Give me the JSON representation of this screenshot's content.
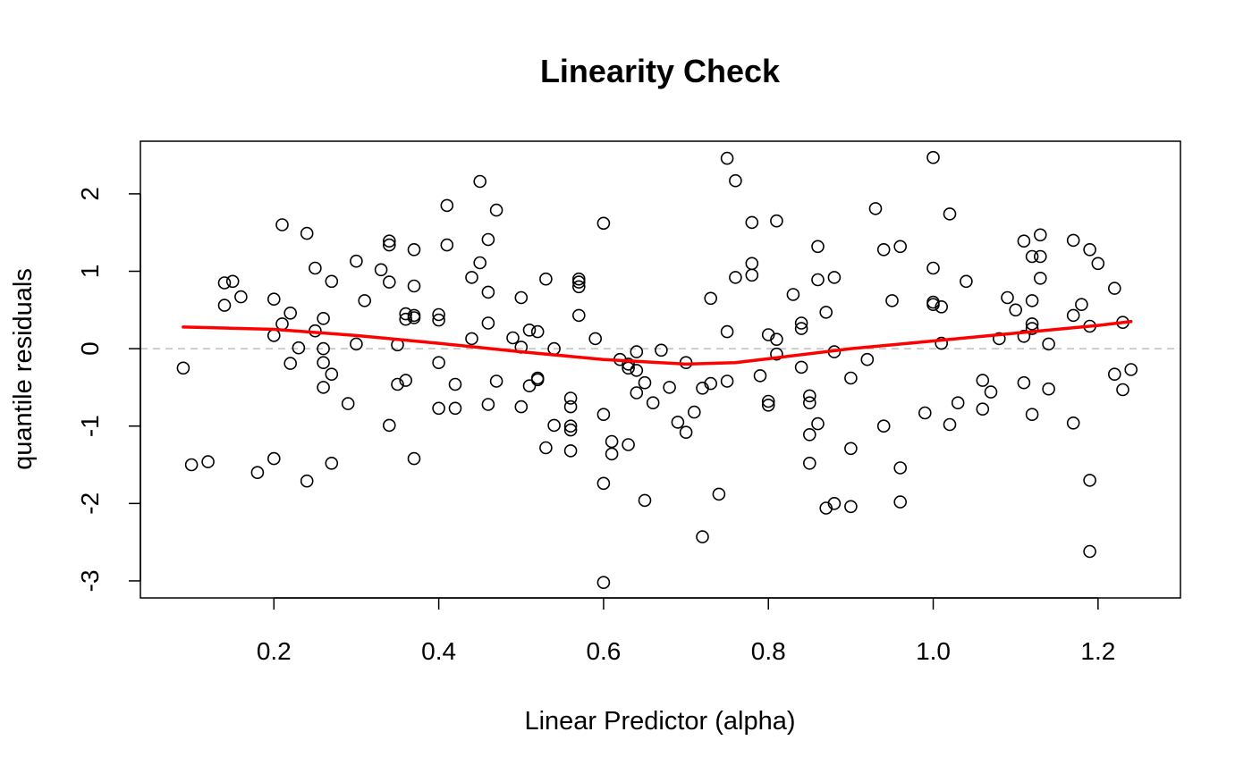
{
  "chart_data": {
    "type": "scatter",
    "title": "Linearity Check",
    "xlabel": "Linear Predictor (alpha)",
    "ylabel": "quantile residuals",
    "xlim": [
      0.04,
      1.3
    ],
    "ylim": [
      -3.2,
      2.7
    ],
    "x_ticks": [
      0.2,
      0.4,
      0.6,
      0.8,
      1.0,
      1.2
    ],
    "x_tick_labels": [
      "0.2",
      "0.4",
      "0.6",
      "0.8",
      "1.0",
      "1.2"
    ],
    "y_ticks": [
      -3,
      -2,
      -1,
      0,
      1,
      2
    ],
    "y_tick_labels": [
      "-3",
      "-2",
      "-1",
      "0",
      "1",
      "2"
    ],
    "grid": false,
    "reference_line": {
      "y": 0,
      "style": "dashed",
      "color": "#bebebe"
    },
    "point_color": "#000000",
    "smooth_color": "#ff0000",
    "points": [
      [
        0.09,
        -0.25
      ],
      [
        0.1,
        -1.5
      ],
      [
        0.12,
        -1.46
      ],
      [
        0.14,
        0.56
      ],
      [
        0.14,
        0.85
      ],
      [
        0.15,
        0.87
      ],
      [
        0.16,
        0.67
      ],
      [
        0.18,
        -1.6
      ],
      [
        0.2,
        0.17
      ],
      [
        0.2,
        0.64
      ],
      [
        0.2,
        -1.42
      ],
      [
        0.21,
        1.6
      ],
      [
        0.21,
        0.32
      ],
      [
        0.22,
        0.46
      ],
      [
        0.22,
        -0.19
      ],
      [
        0.23,
        0.01
      ],
      [
        0.24,
        1.49
      ],
      [
        0.24,
        -1.71
      ],
      [
        0.25,
        0.23
      ],
      [
        0.25,
        1.04
      ],
      [
        0.26,
        0.39
      ],
      [
        0.26,
        0.0
      ],
      [
        0.26,
        -0.18
      ],
      [
        0.26,
        -0.5
      ],
      [
        0.27,
        -0.33
      ],
      [
        0.27,
        0.87
      ],
      [
        0.27,
        -1.48
      ],
      [
        0.29,
        -0.71
      ],
      [
        0.3,
        1.13
      ],
      [
        0.3,
        0.06
      ],
      [
        0.31,
        0.62
      ],
      [
        0.33,
        1.02
      ],
      [
        0.34,
        1.39
      ],
      [
        0.34,
        0.86
      ],
      [
        0.34,
        -0.99
      ],
      [
        0.34,
        1.34
      ],
      [
        0.35,
        0.05
      ],
      [
        0.35,
        -0.46
      ],
      [
        0.36,
        0.45
      ],
      [
        0.36,
        -0.41
      ],
      [
        0.36,
        0.38
      ],
      [
        0.37,
        0.81
      ],
      [
        0.37,
        0.43
      ],
      [
        0.37,
        0.4
      ],
      [
        0.37,
        1.28
      ],
      [
        0.37,
        -1.42
      ],
      [
        0.4,
        0.44
      ],
      [
        0.4,
        0.37
      ],
      [
        0.4,
        -0.18
      ],
      [
        0.4,
        -0.77
      ],
      [
        0.41,
        1.85
      ],
      [
        0.41,
        1.34
      ],
      [
        0.42,
        -0.77
      ],
      [
        0.42,
        -0.46
      ],
      [
        0.44,
        0.13
      ],
      [
        0.44,
        0.92
      ],
      [
        0.45,
        2.16
      ],
      [
        0.45,
        1.11
      ],
      [
        0.46,
        1.41
      ],
      [
        0.46,
        0.73
      ],
      [
        0.46,
        0.33
      ],
      [
        0.46,
        -0.72
      ],
      [
        0.47,
        1.79
      ],
      [
        0.47,
        -0.42
      ],
      [
        0.49,
        0.14
      ],
      [
        0.5,
        0.02
      ],
      [
        0.5,
        -0.75
      ],
      [
        0.5,
        0.66
      ],
      [
        0.51,
        0.24
      ],
      [
        0.51,
        -0.48
      ],
      [
        0.52,
        -0.38
      ],
      [
        0.52,
        0.22
      ],
      [
        0.52,
        -0.4
      ],
      [
        0.53,
        0.9
      ],
      [
        0.53,
        -1.28
      ],
      [
        0.54,
        -0.99
      ],
      [
        0.54,
        0.0
      ],
      [
        0.56,
        -1.32
      ],
      [
        0.56,
        -1.0
      ],
      [
        0.56,
        -0.75
      ],
      [
        0.56,
        -0.64
      ],
      [
        0.56,
        -1.05
      ],
      [
        0.57,
        0.43
      ],
      [
        0.57,
        0.86
      ],
      [
        0.57,
        0.8
      ],
      [
        0.57,
        0.9
      ],
      [
        0.59,
        0.13
      ],
      [
        0.6,
        -3.02
      ],
      [
        0.6,
        -0.85
      ],
      [
        0.6,
        1.62
      ],
      [
        0.6,
        -1.74
      ],
      [
        0.61,
        -1.36
      ],
      [
        0.61,
        -1.2
      ],
      [
        0.62,
        -0.14
      ],
      [
        0.63,
        -0.2
      ],
      [
        0.63,
        -0.25
      ],
      [
        0.63,
        -1.24
      ],
      [
        0.64,
        -0.28
      ],
      [
        0.64,
        -0.57
      ],
      [
        0.64,
        -0.04
      ],
      [
        0.65,
        -0.44
      ],
      [
        0.65,
        -1.96
      ],
      [
        0.66,
        -0.7
      ],
      [
        0.67,
        -0.02
      ],
      [
        0.68,
        -0.5
      ],
      [
        0.69,
        -0.95
      ],
      [
        0.7,
        -1.08
      ],
      [
        0.7,
        -0.18
      ],
      [
        0.71,
        -0.82
      ],
      [
        0.72,
        -0.51
      ],
      [
        0.72,
        -2.43
      ],
      [
        0.73,
        -0.45
      ],
      [
        0.73,
        0.65
      ],
      [
        0.74,
        -1.88
      ],
      [
        0.75,
        2.46
      ],
      [
        0.75,
        0.22
      ],
      [
        0.75,
        -0.42
      ],
      [
        0.76,
        0.92
      ],
      [
        0.76,
        2.17
      ],
      [
        0.78,
        1.1
      ],
      [
        0.78,
        0.95
      ],
      [
        0.78,
        1.63
      ],
      [
        0.79,
        -0.35
      ],
      [
        0.8,
        -0.73
      ],
      [
        0.8,
        0.18
      ],
      [
        0.8,
        -0.68
      ],
      [
        0.81,
        -0.07
      ],
      [
        0.81,
        1.65
      ],
      [
        0.81,
        0.12
      ],
      [
        0.83,
        0.7
      ],
      [
        0.84,
        0.26
      ],
      [
        0.84,
        -0.24
      ],
      [
        0.84,
        0.33
      ],
      [
        0.85,
        -1.11
      ],
      [
        0.85,
        -1.48
      ],
      [
        0.85,
        -0.7
      ],
      [
        0.85,
        -0.61
      ],
      [
        0.86,
        1.32
      ],
      [
        0.86,
        0.89
      ],
      [
        0.86,
        -0.97
      ],
      [
        0.87,
        0.47
      ],
      [
        0.87,
        -2.06
      ],
      [
        0.88,
        -2.0
      ],
      [
        0.88,
        -0.04
      ],
      [
        0.88,
        0.92
      ],
      [
        0.9,
        -0.38
      ],
      [
        0.9,
        -2.04
      ],
      [
        0.9,
        -1.29
      ],
      [
        0.92,
        -0.14
      ],
      [
        0.93,
        1.81
      ],
      [
        0.94,
        1.28
      ],
      [
        0.94,
        -1.0
      ],
      [
        0.95,
        0.62
      ],
      [
        0.96,
        -1.54
      ],
      [
        0.96,
        -1.98
      ],
      [
        0.96,
        1.32
      ],
      [
        0.99,
        -0.83
      ],
      [
        1.0,
        2.47
      ],
      [
        1.0,
        1.04
      ],
      [
        1.0,
        0.6
      ],
      [
        1.0,
        0.57
      ],
      [
        1.01,
        0.54
      ],
      [
        1.01,
        0.07
      ],
      [
        1.02,
        1.74
      ],
      [
        1.02,
        -0.98
      ],
      [
        1.03,
        -0.7
      ],
      [
        1.04,
        0.87
      ],
      [
        1.06,
        -0.78
      ],
      [
        1.06,
        -0.41
      ],
      [
        1.07,
        -0.56
      ],
      [
        1.08,
        0.13
      ],
      [
        1.09,
        0.66
      ],
      [
        1.1,
        0.5
      ],
      [
        1.11,
        -0.44
      ],
      [
        1.11,
        0.16
      ],
      [
        1.11,
        1.39
      ],
      [
        1.12,
        1.19
      ],
      [
        1.12,
        0.62
      ],
      [
        1.12,
        0.32
      ],
      [
        1.12,
        -0.85
      ],
      [
        1.12,
        0.26
      ],
      [
        1.13,
        0.91
      ],
      [
        1.13,
        1.47
      ],
      [
        1.13,
        1.19
      ],
      [
        1.14,
        0.06
      ],
      [
        1.14,
        -0.52
      ],
      [
        1.17,
        0.43
      ],
      [
        1.17,
        1.4
      ],
      [
        1.17,
        -0.96
      ],
      [
        1.18,
        0.57
      ],
      [
        1.19,
        1.28
      ],
      [
        1.19,
        -1.7
      ],
      [
        1.19,
        -2.62
      ],
      [
        1.19,
        0.29
      ],
      [
        1.2,
        1.1
      ],
      [
        1.22,
        -0.33
      ],
      [
        1.22,
        0.78
      ],
      [
        1.23,
        -0.53
      ],
      [
        1.23,
        0.34
      ],
      [
        1.24,
        -0.27
      ]
    ],
    "smooth_line": [
      [
        0.09,
        0.28
      ],
      [
        0.2,
        0.25
      ],
      [
        0.3,
        0.17
      ],
      [
        0.4,
        0.07
      ],
      [
        0.5,
        -0.04
      ],
      [
        0.6,
        -0.14
      ],
      [
        0.7,
        -0.2
      ],
      [
        0.76,
        -0.18
      ],
      [
        0.8,
        -0.13
      ],
      [
        0.9,
        0.0
      ],
      [
        1.0,
        0.1
      ],
      [
        1.1,
        0.2
      ],
      [
        1.2,
        0.3
      ],
      [
        1.24,
        0.35
      ]
    ]
  }
}
